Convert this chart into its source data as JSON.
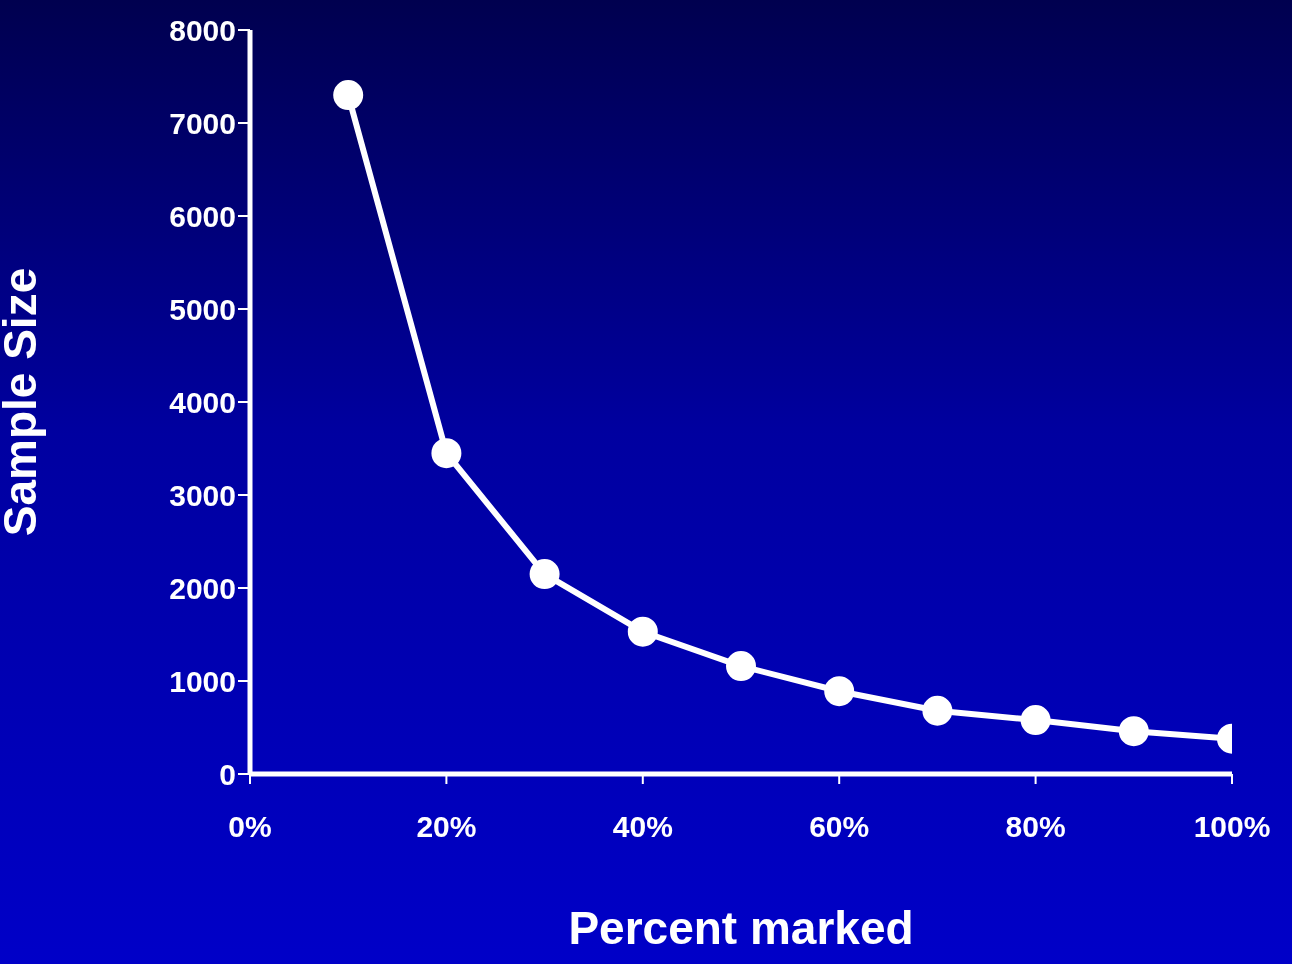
{
  "chart_data": {
    "type": "line",
    "xlabel": "Percent marked",
    "ylabel": "Sample Size",
    "x": [
      10,
      20,
      30,
      40,
      50,
      60,
      70,
      80,
      90,
      100
    ],
    "series": [
      {
        "color": "#ffffff",
        "values": [
          7300,
          3450,
          2150,
          1530,
          1160,
          890,
          680,
          580,
          460,
          380
        ]
      }
    ],
    "xlim": [
      0,
      100
    ],
    "xticks": [
      {
        "value": 0,
        "label": "0%"
      },
      {
        "value": 20,
        "label": "20%"
      },
      {
        "value": 40,
        "label": "40%"
      },
      {
        "value": 60,
        "label": "60%"
      },
      {
        "value": 80,
        "label": "80%"
      },
      {
        "value": 100,
        "label": "100%"
      }
    ],
    "ylim": [
      0,
      8000
    ],
    "yticks": [
      0,
      1000,
      2000,
      3000,
      4000,
      5000,
      6000,
      7000,
      8000
    ],
    "grid": false,
    "legend": false,
    "marker": "circle",
    "line_style": "solid"
  }
}
